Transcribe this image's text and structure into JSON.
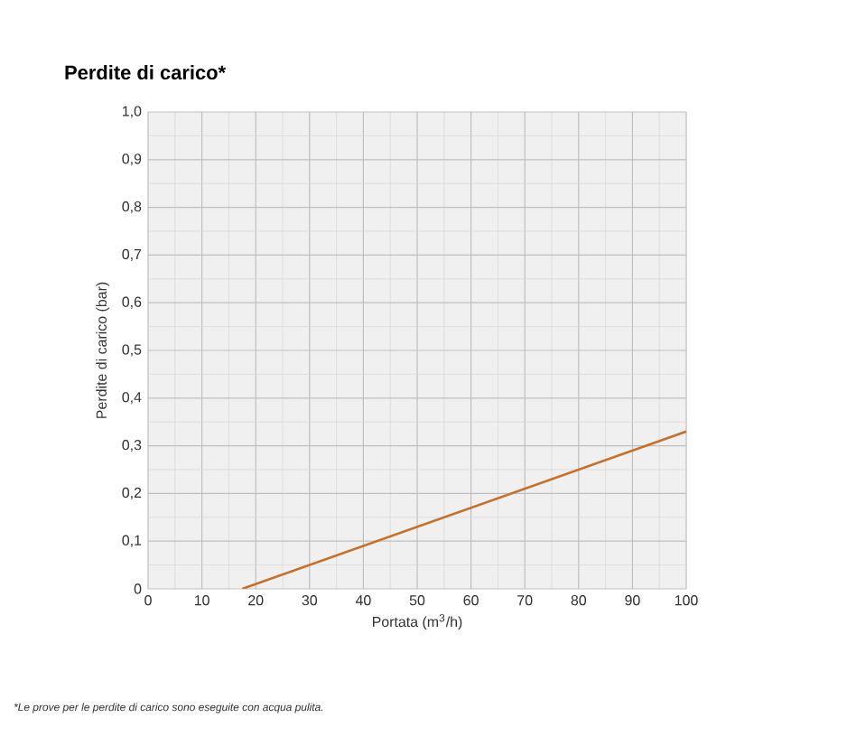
{
  "chart_data": {
    "type": "line",
    "title": "Perdite di carico*",
    "xlabel": "Portata (m$^{3}$/h)",
    "ylabel": "Perdite di carico (bar)",
    "annotations": [
      "*Le prove per le perdite di carico sono eseguite con acqua pulita."
    ],
    "series": [
      {
        "color": "#c8702a",
        "x": [
          17.5,
          100
        ],
        "values": [
          0,
          0.33
        ]
      }
    ],
    "xlim": [
      0,
      100
    ],
    "ylim": [
      0,
      1
    ],
    "xticks": [
      0,
      10,
      20,
      30,
      40,
      50,
      60,
      70,
      80,
      90,
      100
    ],
    "yticks": [
      {
        "value": 0,
        "label": "0"
      },
      {
        "value": 0.1,
        "label": "0,1"
      },
      {
        "value": 0.2,
        "label": "0,2"
      },
      {
        "value": 0.3,
        "label": "0,3"
      },
      {
        "value": 0.4,
        "label": "0,4"
      },
      {
        "value": 0.5,
        "label": "0,5"
      },
      {
        "value": 0.6,
        "label": "0,6"
      },
      {
        "value": 0.7,
        "label": "0,7"
      },
      {
        "value": 0.8,
        "label": "0,8"
      },
      {
        "value": 0.9,
        "label": "0,9"
      },
      {
        "value": 1.0,
        "label": "1,0"
      }
    ],
    "grid": true,
    "marker": "none",
    "line_style": "solid"
  }
}
